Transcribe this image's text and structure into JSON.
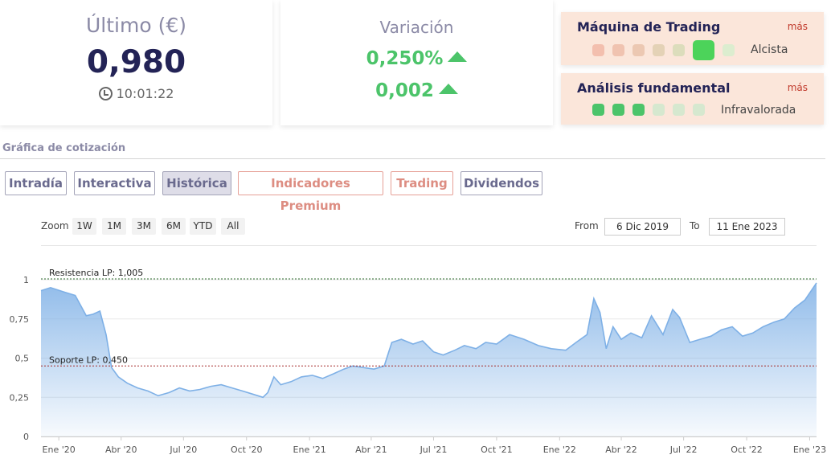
{
  "last": {
    "title": "Último (€)",
    "value": "0,980",
    "time": "10:01:22"
  },
  "variation": {
    "title": "Variación",
    "percent": "0,250%",
    "absolute": "0,002"
  },
  "trading_machine": {
    "title": "Máquina de Trading",
    "more": "más",
    "signal": "Alcista",
    "dots": [
      "#f3bfae",
      "#f0c3b0",
      "#ecc8b2",
      "#e4d2b6",
      "#dcddbc",
      "#4cd35a",
      "#dcedcf"
    ]
  },
  "fundamental": {
    "title": "Análisis fundamental",
    "more": "más",
    "signal": "Infravalorada",
    "dots": [
      "#4cc46a",
      "#4cc46a",
      "#4cc46a",
      "#d6e8cf",
      "#d6e8cf",
      "#d6e8cf"
    ]
  },
  "section_title": "Gráfica de cotización",
  "tabs": [
    {
      "label": "Intradía",
      "active": false,
      "premium": false
    },
    {
      "label": "Interactiva",
      "active": false,
      "premium": false
    },
    {
      "label": "Histórica",
      "active": true,
      "premium": false
    },
    {
      "label": "Indicadores Premium",
      "active": false,
      "premium": true
    },
    {
      "label": "Trading",
      "active": false,
      "premium": true
    },
    {
      "label": "Dividendos",
      "active": false,
      "premium": false
    }
  ],
  "zoom": {
    "label": "Zoom",
    "options": [
      "1W",
      "1M",
      "3M",
      "6M",
      "YTD",
      "All"
    ]
  },
  "range": {
    "from_label": "From",
    "from": "6 Dic 2019",
    "to_label": "To",
    "to": "11 Ene 2023"
  },
  "colors": {
    "accent_green": "#4cc46a",
    "dark_navy": "#232356",
    "muted_purple": "#8b8aa6",
    "premium_red": "#dd8d82",
    "line_blue": "#7eb0e6"
  },
  "chart_data": {
    "type": "area",
    "ylim": [
      0,
      1
    ],
    "y_ticks": [
      "0",
      "0,25",
      "0,5",
      "0,75",
      "1"
    ],
    "x_ticks": [
      "Ene '20",
      "Abr '20",
      "Jul '20",
      "Oct '20",
      "Ene '21",
      "Abr '21",
      "Jul '21",
      "Oct '21",
      "Ene '22",
      "Abr '22",
      "Jul '22",
      "Oct '22",
      "Ene '23"
    ],
    "resistance": {
      "label": "Resistencia LP: 1,005",
      "value": 1.005
    },
    "support": {
      "label": "Soporte LP: 0,450",
      "value": 0.45
    },
    "series": [
      {
        "x": [
          "2019-12-06",
          "2019-12-20",
          "2020-01-10",
          "2020-01-25",
          "2020-02-10",
          "2020-02-20",
          "2020-03-01",
          "2020-03-10",
          "2020-03-18",
          "2020-03-28",
          "2020-04-10",
          "2020-04-25",
          "2020-05-10",
          "2020-05-25",
          "2020-06-10",
          "2020-06-25",
          "2020-07-10",
          "2020-07-25",
          "2020-08-10",
          "2020-08-25",
          "2020-09-10",
          "2020-09-25",
          "2020-10-10",
          "2020-10-25",
          "2020-11-01",
          "2020-11-10",
          "2020-11-20",
          "2020-12-05",
          "2020-12-20",
          "2021-01-05",
          "2021-01-20",
          "2021-02-05",
          "2021-02-20",
          "2021-03-05",
          "2021-03-20",
          "2021-04-05",
          "2021-04-20",
          "2021-05-01",
          "2021-05-15",
          "2021-06-01",
          "2021-06-15",
          "2021-07-01",
          "2021-07-15",
          "2021-08-01",
          "2021-08-15",
          "2021-09-01",
          "2021-09-15",
          "2021-10-01",
          "2021-10-20",
          "2021-11-10",
          "2021-12-01",
          "2021-12-20",
          "2022-01-10",
          "2022-01-25",
          "2022-02-10",
          "2022-02-20",
          "2022-03-01",
          "2022-03-10",
          "2022-03-20",
          "2022-04-01",
          "2022-04-15",
          "2022-05-01",
          "2022-05-15",
          "2022-06-01",
          "2022-06-15",
          "2022-06-25",
          "2022-07-10",
          "2022-07-25",
          "2022-08-10",
          "2022-08-25",
          "2022-09-10",
          "2022-09-25",
          "2022-10-10",
          "2022-10-25",
          "2022-11-10",
          "2022-11-25",
          "2022-12-10",
          "2022-12-25",
          "2023-01-11"
        ],
        "y": [
          0.93,
          0.95,
          0.92,
          0.9,
          0.77,
          0.78,
          0.8,
          0.65,
          0.44,
          0.38,
          0.34,
          0.31,
          0.29,
          0.26,
          0.28,
          0.31,
          0.29,
          0.3,
          0.32,
          0.33,
          0.31,
          0.29,
          0.27,
          0.25,
          0.28,
          0.38,
          0.33,
          0.35,
          0.38,
          0.39,
          0.37,
          0.4,
          0.43,
          0.45,
          0.44,
          0.43,
          0.45,
          0.6,
          0.62,
          0.59,
          0.61,
          0.54,
          0.52,
          0.55,
          0.58,
          0.56,
          0.6,
          0.59,
          0.65,
          0.62,
          0.58,
          0.56,
          0.55,
          0.6,
          0.65,
          0.88,
          0.79,
          0.56,
          0.7,
          0.62,
          0.66,
          0.63,
          0.77,
          0.65,
          0.81,
          0.76,
          0.6,
          0.62,
          0.64,
          0.68,
          0.7,
          0.64,
          0.66,
          0.7,
          0.73,
          0.75,
          0.82,
          0.87,
          0.98
        ]
      }
    ]
  }
}
